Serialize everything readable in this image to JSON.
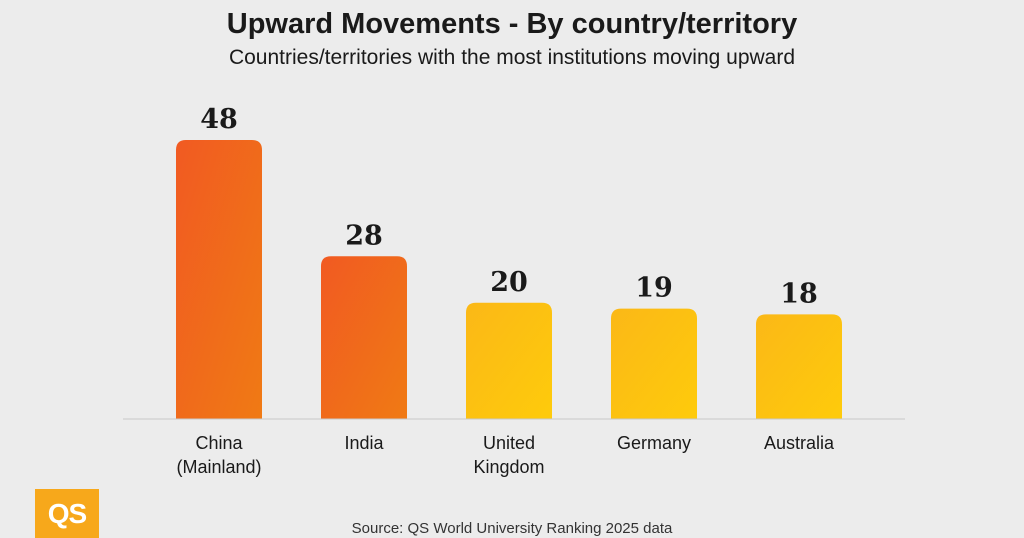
{
  "title": "Upward Movements - By country/territory",
  "subtitle": "Countries/territories with the most institutions moving upward",
  "source": "Source: QS World University Ranking 2025 data",
  "logo_text": "QS",
  "colors": {
    "orange_top": "#f15a22",
    "orange_bottom": "#e8590c",
    "yellow_top": "#fbb515",
    "yellow_bottom": "#fdc70a",
    "axis": "#c8c8c8",
    "text": "#1a1a1a",
    "logo": "#f7a81b"
  },
  "chart_data": {
    "type": "bar",
    "categories": [
      [
        "China",
        "(Mainland)"
      ],
      [
        "India"
      ],
      [
        "United",
        "Kingdom"
      ],
      [
        "Germany"
      ],
      [
        "Australia"
      ]
    ],
    "values": [
      48,
      28,
      20,
      19,
      18
    ],
    "bar_colors": [
      "orange",
      "orange",
      "yellow",
      "yellow",
      "yellow"
    ],
    "ylim": [
      0,
      48
    ],
    "grid": false,
    "legend": "none",
    "data_labels": true
  }
}
